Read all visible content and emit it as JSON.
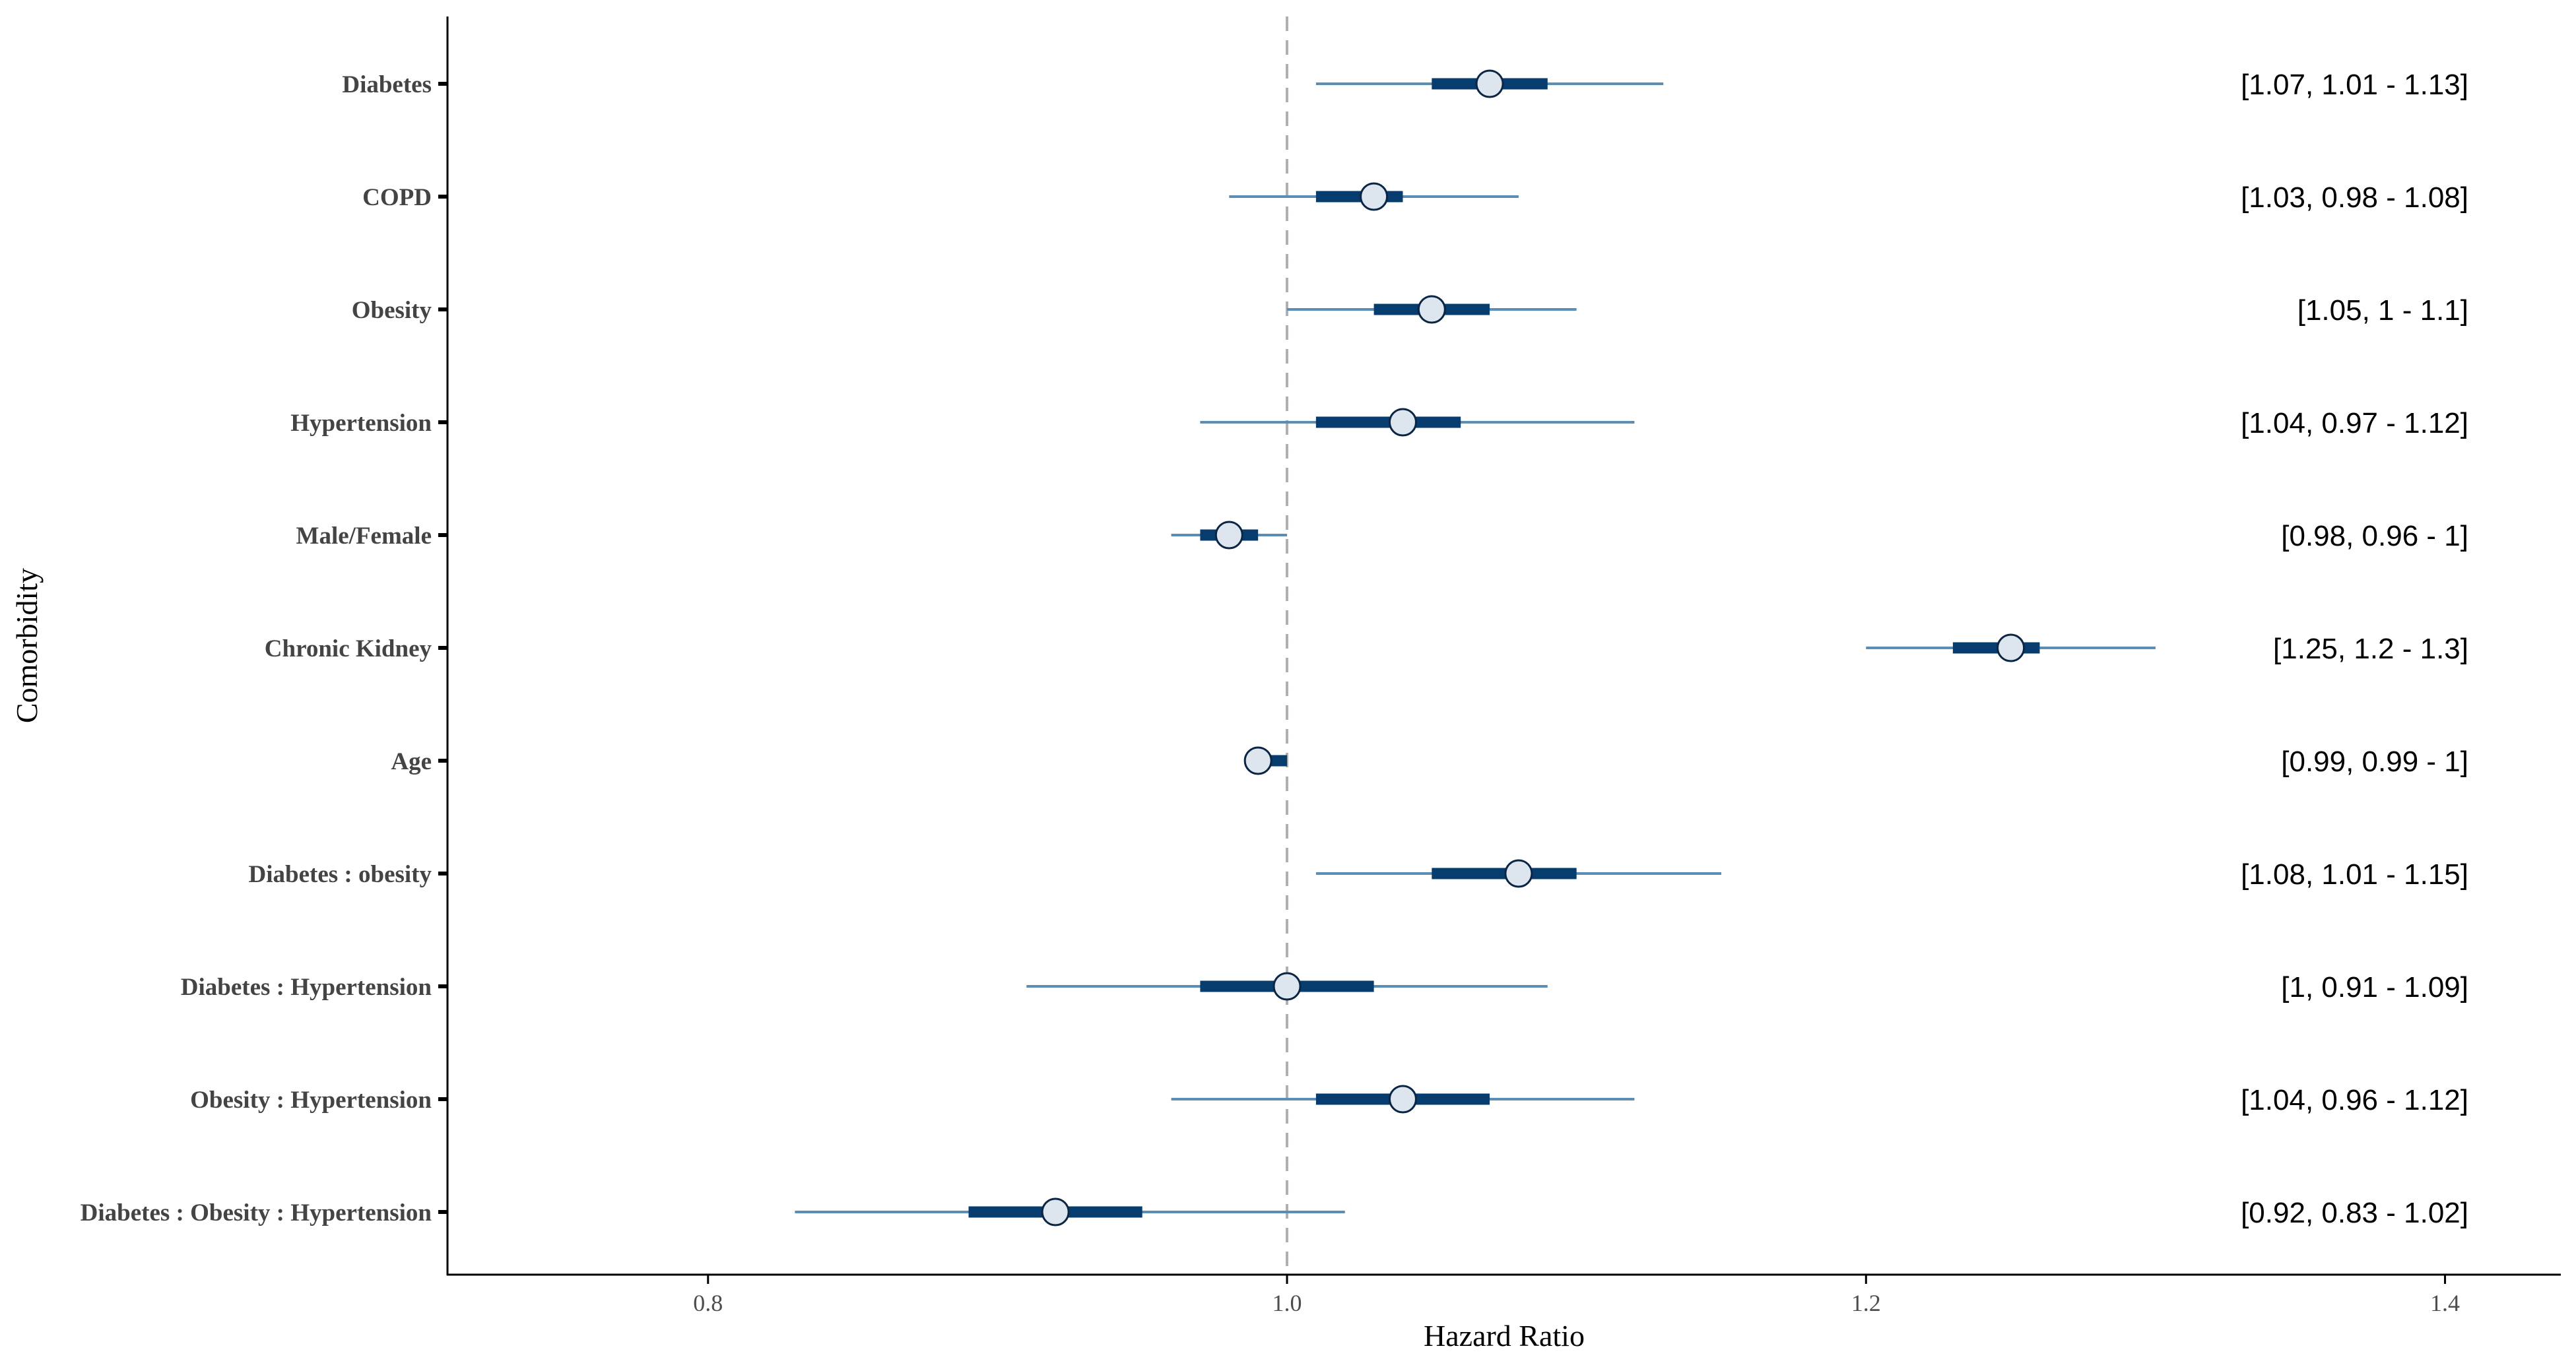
{
  "chart_data": {
    "type": "forest",
    "xlabel": "Hazard Ratio",
    "ylabel": "Comorbidity",
    "xlim": [
      0.71,
      1.44
    ],
    "xticks": [
      0.8,
      1.0,
      1.2,
      1.4
    ],
    "xtick_labels": [
      "0.8",
      "1.0",
      "1.2",
      "1.4"
    ],
    "reference_line": 1.0,
    "grid": false,
    "colors": {
      "ci_outer": "#5b8db5",
      "ci_inner": "#063c6e",
      "point_fill": "#dde6ef",
      "point_stroke": "#0b2545",
      "reference_line": "#b0b0b0",
      "axis": "#000000"
    },
    "rows": [
      {
        "label": "Diabetes",
        "hr": 1.07,
        "outer_low": 1.01,
        "outer_high": 1.13,
        "inner_low": 1.05,
        "inner_high": 1.09,
        "ci_text": "[1.07, 1.01 - 1.13]"
      },
      {
        "label": "COPD",
        "hr": 1.03,
        "outer_low": 0.98,
        "outer_high": 1.08,
        "inner_low": 1.01,
        "inner_high": 1.04,
        "ci_text": "[1.03, 0.98 - 1.08]"
      },
      {
        "label": "Obesity",
        "hr": 1.05,
        "outer_low": 1.0,
        "outer_high": 1.1,
        "inner_low": 1.03,
        "inner_high": 1.07,
        "ci_text": "[1.05, 1 - 1.1]"
      },
      {
        "label": "Hypertension",
        "hr": 1.04,
        "outer_low": 0.97,
        "outer_high": 1.12,
        "inner_low": 1.01,
        "inner_high": 1.06,
        "ci_text": "[1.04, 0.97 - 1.12]"
      },
      {
        "label": "Male/Female",
        "hr": 0.98,
        "outer_low": 0.96,
        "outer_high": 1.0,
        "inner_low": 0.97,
        "inner_high": 0.99,
        "ci_text": "[0.98, 0.96 - 1]"
      },
      {
        "label": "Chronic Kidney",
        "hr": 1.25,
        "outer_low": 1.2,
        "outer_high": 1.3,
        "inner_low": 1.23,
        "inner_high": 1.26,
        "ci_text": "[1.25, 1.2 - 1.3]"
      },
      {
        "label": "Age",
        "hr": 0.99,
        "outer_low": 0.99,
        "outer_high": 1.0,
        "inner_low": 0.99,
        "inner_high": 1.0,
        "ci_text": "[0.99, 0.99 - 1]"
      },
      {
        "label": "Diabetes : obesity",
        "hr": 1.08,
        "outer_low": 1.01,
        "outer_high": 1.15,
        "inner_low": 1.05,
        "inner_high": 1.1,
        "ci_text": "[1.08, 1.01 - 1.15]"
      },
      {
        "label": "Diabetes : Hypertension",
        "hr": 1.0,
        "outer_low": 0.91,
        "outer_high": 1.09,
        "inner_low": 0.97,
        "inner_high": 1.03,
        "ci_text": "[1, 0.91 - 1.09]"
      },
      {
        "label": "Obesity : Hypertension",
        "hr": 1.04,
        "outer_low": 0.96,
        "outer_high": 1.12,
        "inner_low": 1.01,
        "inner_high": 1.07,
        "ci_text": "[1.04, 0.96 - 1.12]"
      },
      {
        "label": "Diabetes : Obesity : Hypertension",
        "hr": 0.92,
        "outer_low": 0.83,
        "outer_high": 1.02,
        "inner_low": 0.89,
        "inner_high": 0.95,
        "ci_text": "[0.92, 0.83 - 1.02]"
      }
    ]
  }
}
